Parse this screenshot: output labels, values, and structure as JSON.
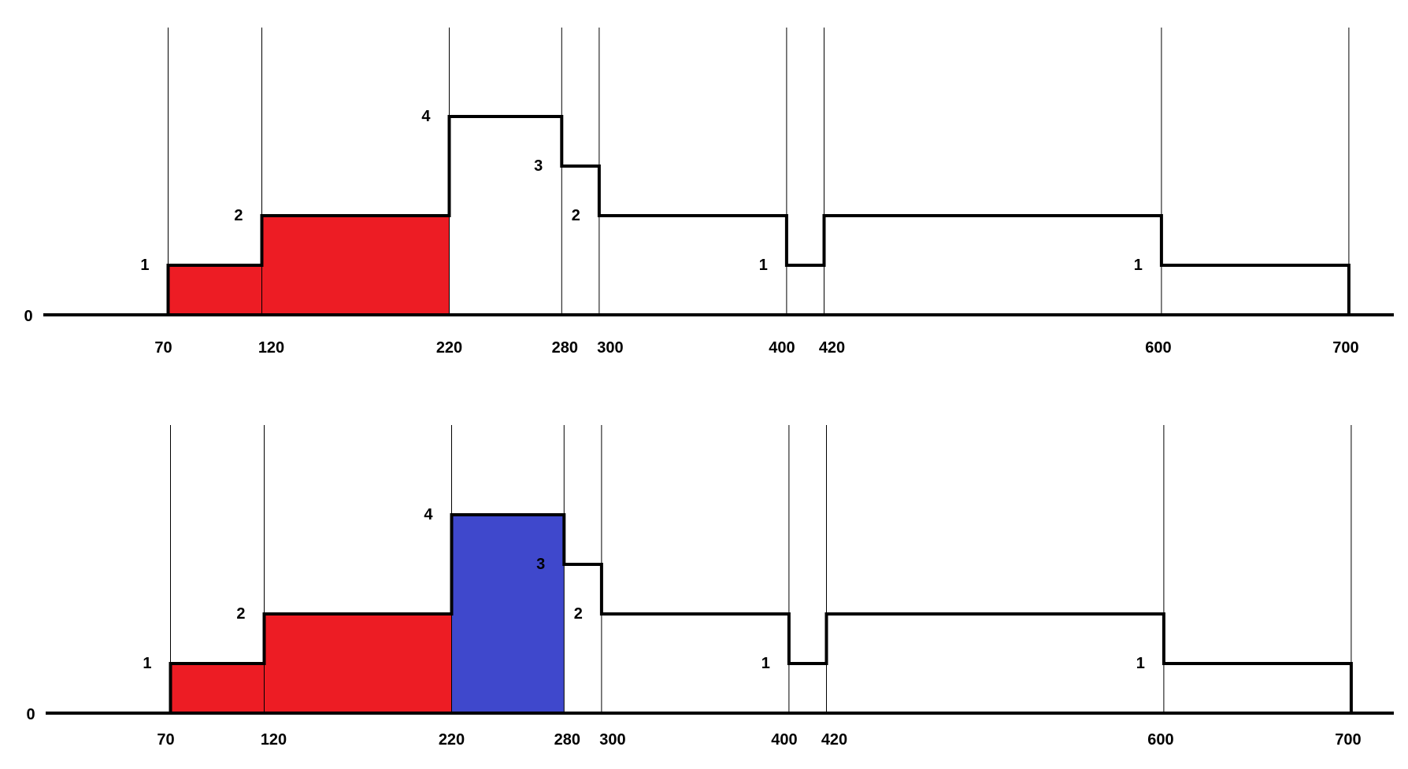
{
  "chart_data": [
    {
      "type": "area",
      "zero_label": "0",
      "x": [
        70,
        120,
        220,
        280,
        300,
        400,
        420,
        600,
        700
      ],
      "x_labels": [
        "70",
        "120",
        "220",
        "280",
        "300",
        "400",
        "420",
        "600",
        "700"
      ],
      "steps": [
        {
          "x0": 70,
          "x1": 120,
          "y": 1,
          "label": "1"
        },
        {
          "x0": 120,
          "x1": 220,
          "y": 2,
          "label": "2"
        },
        {
          "x0": 220,
          "x1": 280,
          "y": 4,
          "label": "4"
        },
        {
          "x0": 280,
          "x1": 300,
          "y": 3,
          "label": "3"
        },
        {
          "x0": 300,
          "x1": 400,
          "y": 2,
          "label": "2"
        },
        {
          "x0": 400,
          "x1": 420,
          "y": 1,
          "label": "1"
        },
        {
          "x0": 420,
          "x1": 600,
          "y": 2,
          "label": ""
        },
        {
          "x0": 600,
          "x1": 700,
          "y": 1,
          "label": "1"
        }
      ],
      "highlights": [
        {
          "x0": 70,
          "x1": 220,
          "color": "#ed1c24"
        }
      ]
    },
    {
      "type": "area",
      "zero_label": "0",
      "x": [
        70,
        120,
        220,
        280,
        300,
        400,
        420,
        600,
        700
      ],
      "x_labels": [
        "70",
        "120",
        "220",
        "280",
        "300",
        "400",
        "420",
        "600",
        "700"
      ],
      "steps": [
        {
          "x0": 70,
          "x1": 120,
          "y": 1,
          "label": "1"
        },
        {
          "x0": 120,
          "x1": 220,
          "y": 2,
          "label": "2"
        },
        {
          "x0": 220,
          "x1": 280,
          "y": 4,
          "label": "4"
        },
        {
          "x0": 280,
          "x1": 300,
          "y": 3,
          "label": "3"
        },
        {
          "x0": 300,
          "x1": 400,
          "y": 2,
          "label": "2"
        },
        {
          "x0": 400,
          "x1": 420,
          "y": 1,
          "label": "1"
        },
        {
          "x0": 420,
          "x1": 600,
          "y": 2,
          "label": ""
        },
        {
          "x0": 600,
          "x1": 700,
          "y": 1,
          "label": "1"
        }
      ],
      "highlights": [
        {
          "x0": 70,
          "x1": 220,
          "color": "#ed1c24"
        },
        {
          "x0": 220,
          "x1": 280,
          "color": "#3f48cc"
        }
      ]
    }
  ]
}
